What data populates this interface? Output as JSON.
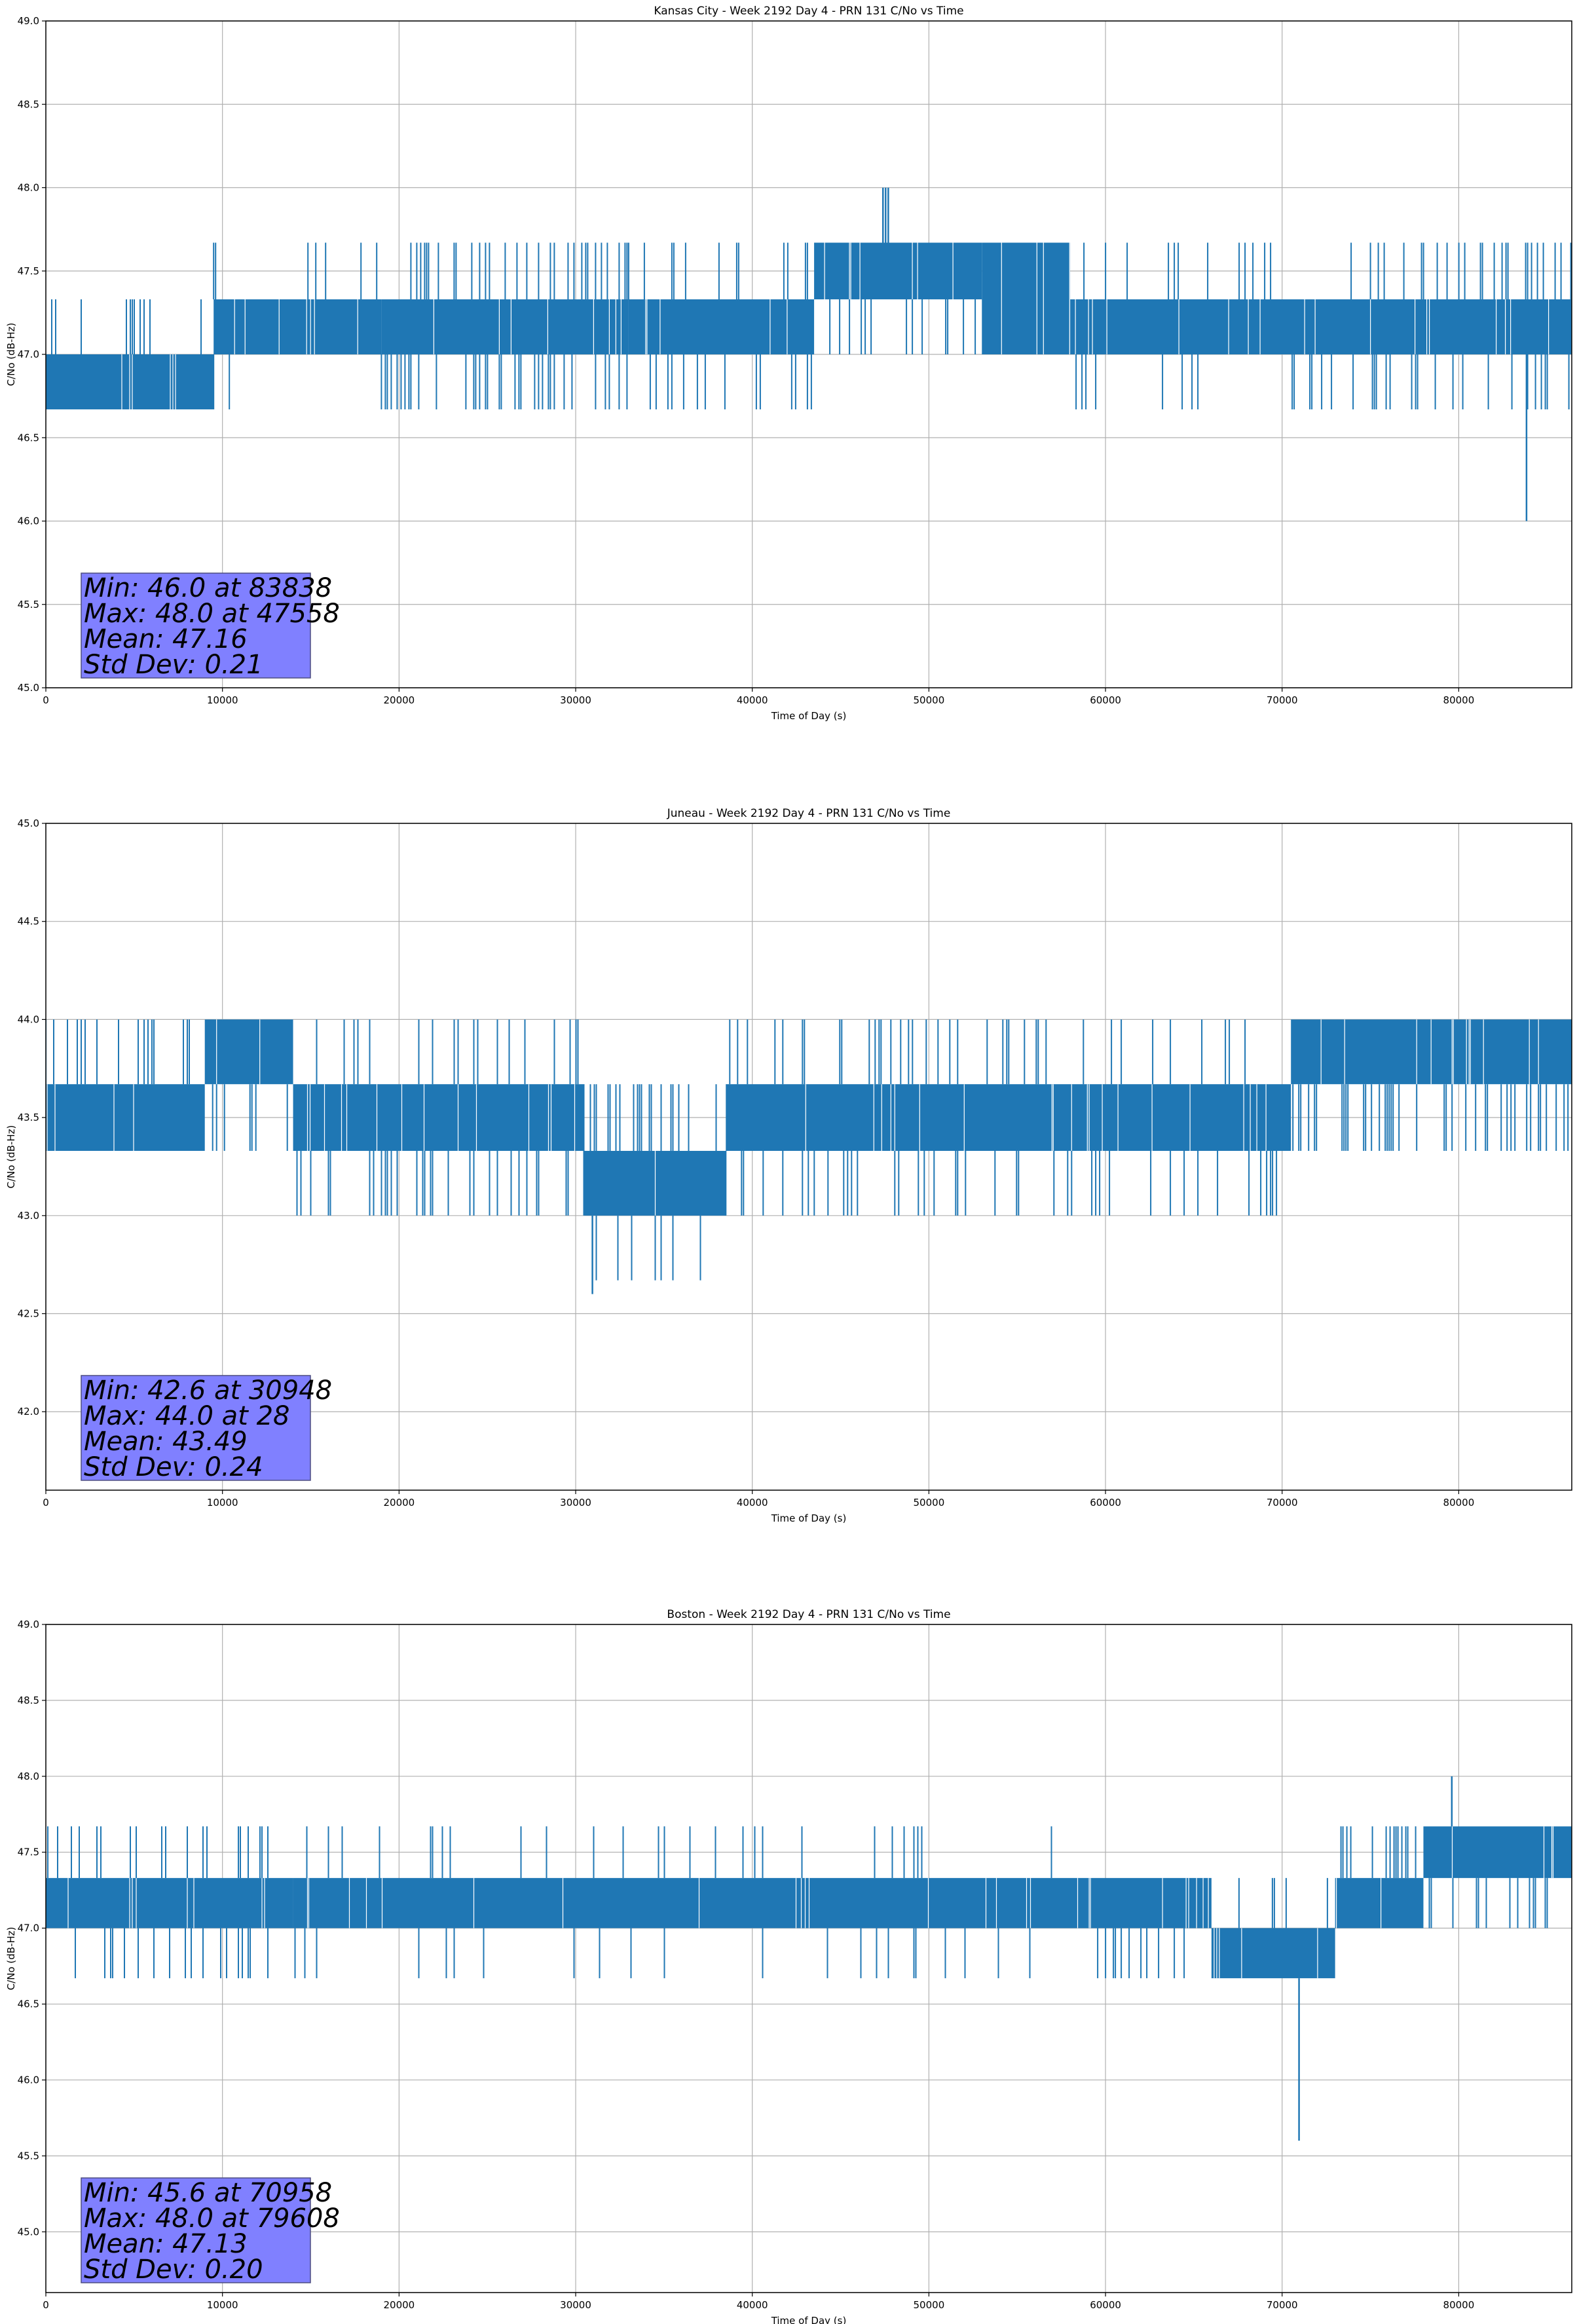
{
  "colors": {
    "series": "#1f77b4",
    "grid": "#b0b0b0",
    "stats_box_fill": "#8080ff",
    "stats_box_stroke": "#4d4d80"
  },
  "chart_data": [
    {
      "type": "line",
      "title": "Kansas City - Week 2192 Day 4 - PRN 131 C/No vs Time",
      "xlabel": "Time of Day (s)",
      "ylabel": "C/No (dB-Hz)",
      "xlim": [
        0,
        86400
      ],
      "ylim": [
        45.0,
        49.0
      ],
      "xticks": [
        0,
        10000,
        20000,
        30000,
        40000,
        50000,
        60000,
        70000,
        80000
      ],
      "yticks": [
        45.0,
        45.5,
        46.0,
        46.5,
        47.0,
        47.5,
        48.0,
        48.5,
        49.0
      ],
      "grid": true,
      "quantization_db": 0.33,
      "series": [
        {
          "segments": [
            {
              "x": [
                0,
                9500
              ],
              "low": 46.67,
              "high": 47.0,
              "upper_spikes_to": 47.33,
              "spike_density": 0.35
            },
            {
              "x": [
                9500,
                19000
              ],
              "low": 47.0,
              "high": 47.33,
              "lower_spikes_to": 46.67,
              "upper_spikes_to": 47.67,
              "spike_density": 0.15
            },
            {
              "x": [
                19000,
                33000
              ],
              "low": 47.0,
              "high": 47.33,
              "upper_spikes_to": 47.67,
              "lower_spikes_to": 46.67,
              "spike_density": 0.45
            },
            {
              "x": [
                33000,
                43500
              ],
              "low": 47.0,
              "high": 47.33,
              "upper_spikes_to": 47.67,
              "lower_spikes_to": 46.67,
              "spike_density": 0.2
            },
            {
              "x": [
                43500,
                53000
              ],
              "low": 47.33,
              "high": 47.67,
              "lower_spikes_to": 47.0,
              "spike_density": 0.4
            },
            {
              "x": [
                53000,
                58000
              ],
              "low": 47.0,
              "high": 47.67,
              "lower_spikes_to": 47.0,
              "spike_density": 0.5
            },
            {
              "x": [
                58000,
                75000
              ],
              "low": 47.0,
              "high": 47.33,
              "lower_spikes_to": 46.67,
              "upper_spikes_to": 47.67,
              "spike_density": 0.2
            },
            {
              "x": [
                75000,
                86400
              ],
              "low": 47.0,
              "high": 47.33,
              "lower_spikes_to": 46.67,
              "upper_spikes_to": 47.67,
              "spike_density": 0.4
            }
          ],
          "extreme_spikes": [
            {
              "x": [
                47400,
                47700
              ],
              "y": 48.0
            },
            {
              "x": [
                83838,
                83838
              ],
              "y": 46.0
            }
          ]
        }
      ],
      "stats": {
        "min_line": "Min: 46.0 at 83838",
        "max_line": "Max: 48.0 at 47558",
        "mean_line": "Mean: 47.16",
        "std_line": "Std Dev: 0.21"
      }
    },
    {
      "type": "line",
      "title": "Juneau - Week 2192 Day 4 - PRN 131 C/No vs Time",
      "xlabel": "Time of Day (s)",
      "ylabel": "C/No (dB-Hz)",
      "xlim": [
        0,
        86400
      ],
      "ylim": [
        41.6,
        45.0
      ],
      "xticks": [
        0,
        10000,
        20000,
        30000,
        40000,
        50000,
        60000,
        70000,
        80000
      ],
      "yticks": [
        42.0,
        42.5,
        43.0,
        43.5,
        44.0,
        44.5,
        45.0
      ],
      "grid": true,
      "quantization_db": 0.33,
      "series": [
        {
          "segments": [
            {
              "x": [
                0,
                9000
              ],
              "low": 43.33,
              "high": 43.67,
              "upper_spikes_to": 44.0,
              "spike_density": 0.5
            },
            {
              "x": [
                9000,
                14000
              ],
              "low": 43.67,
              "high": 44.0,
              "lower_spikes_to": 43.33,
              "spike_density": 0.3
            },
            {
              "x": [
                14000,
                30500
              ],
              "low": 43.33,
              "high": 43.67,
              "upper_spikes_to": 44.0,
              "lower_spikes_to": 43.0,
              "spike_density": 0.3
            },
            {
              "x": [
                30500,
                38500
              ],
              "low": 43.0,
              "high": 43.33,
              "upper_spikes_to": 43.67,
              "lower_spikes_to": 42.67,
              "spike_density": 0.3
            },
            {
              "x": [
                38500,
                59000
              ],
              "low": 43.33,
              "high": 43.67,
              "upper_spikes_to": 44.0,
              "lower_spikes_to": 43.0,
              "spike_density": 0.3
            },
            {
              "x": [
                59000,
                70500
              ],
              "low": 43.33,
              "high": 43.67,
              "upper_spikes_to": 44.0,
              "lower_spikes_to": 43.0,
              "spike_density": 0.2
            },
            {
              "x": [
                70500,
                86400
              ],
              "low": 43.67,
              "high": 44.0,
              "lower_spikes_to": 43.33,
              "spike_density": 0.5
            }
          ],
          "extreme_spikes": [
            {
              "x": [
                30948,
                30948
              ],
              "y": 42.6
            }
          ]
        }
      ],
      "stats": {
        "min_line": "Min: 42.6 at 30948",
        "max_line": "Max: 44.0 at 28",
        "mean_line": "Mean: 43.49",
        "std_line": "Std Dev: 0.24"
      }
    },
    {
      "type": "line",
      "title": "Boston - Week 2192 Day 4 - PRN 131 C/No vs Time",
      "xlabel": "Time of Day (s)",
      "ylabel": "C/No (dB-Hz)",
      "xlim": [
        0,
        86400
      ],
      "ylim": [
        44.6,
        49.0
      ],
      "xticks": [
        0,
        10000,
        20000,
        30000,
        40000,
        50000,
        60000,
        70000,
        80000
      ],
      "yticks": [
        45.0,
        45.5,
        46.0,
        46.5,
        47.0,
        47.5,
        48.0,
        48.5,
        49.0
      ],
      "grid": true,
      "quantization_db": 0.33,
      "series": [
        {
          "segments": [
            {
              "x": [
                0,
                14000
              ],
              "low": 47.0,
              "high": 47.33,
              "lower_spikes_to": 46.67,
              "upper_spikes_to": 47.67,
              "spike_density": 0.35
            },
            {
              "x": [
                14000,
                59000
              ],
              "low": 47.0,
              "high": 47.33,
              "lower_spikes_to": 46.67,
              "upper_spikes_to": 47.67,
              "spike_density": 0.12
            },
            {
              "x": [
                59000,
                66000
              ],
              "low": 47.0,
              "high": 47.33,
              "lower_spikes_to": 46.67,
              "spike_density": 0.4
            },
            {
              "x": [
                66000,
                73000
              ],
              "low": 46.67,
              "high": 47.0,
              "upper_spikes_to": 47.33,
              "spike_density": 0.3
            },
            {
              "x": [
                73000,
                78000
              ],
              "low": 47.0,
              "high": 47.33,
              "upper_spikes_to": 47.67,
              "spike_density": 0.5
            },
            {
              "x": [
                78000,
                86400
              ],
              "low": 47.33,
              "high": 47.67,
              "lower_spikes_to": 47.0,
              "spike_density": 0.4
            }
          ],
          "extreme_spikes": [
            {
              "x": [
                70958,
                70958
              ],
              "y": 45.6
            },
            {
              "x": [
                79608,
                79608
              ],
              "y": 48.0
            }
          ]
        }
      ],
      "stats": {
        "min_line": "Min: 45.6 at 70958",
        "max_line": "Max: 48.0 at 79608",
        "mean_line": "Mean: 47.13",
        "std_line": "Std Dev: 0.20"
      }
    }
  ]
}
